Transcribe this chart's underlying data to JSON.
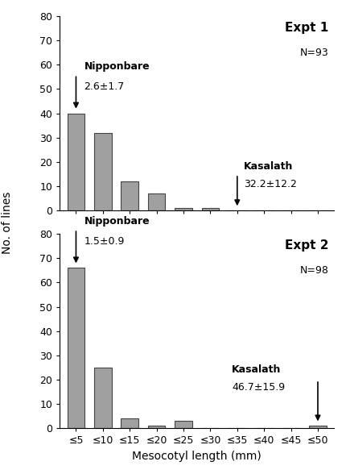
{
  "expt1": {
    "title": "Expt 1",
    "N": "N=93",
    "values": [
      40,
      32,
      12,
      7,
      1,
      1,
      0,
      0,
      0,
      0
    ],
    "nipponbare_label": "Nipponbare",
    "nipponbare_value": "2.6±1.7",
    "kasalath_label": "Kasalath",
    "kasalath_value": "32.2±12.2",
    "kasalath_bar_idx": 6,
    "ylim": [
      0,
      80
    ],
    "yticks": [
      0,
      10,
      20,
      30,
      40,
      50,
      60,
      70,
      80
    ]
  },
  "expt2": {
    "title": "Expt 2",
    "N": "N=98",
    "values": [
      66,
      25,
      4,
      1,
      3,
      0,
      0,
      0,
      0,
      1
    ],
    "nipponbare_label": "Nipponbare",
    "nipponbare_value": "1.5±0.9",
    "kasalath_label": "Kasalath",
    "kasalath_value": "46.7±15.9",
    "kasalath_bar_idx": 9,
    "ylim": [
      0,
      80
    ],
    "yticks": [
      0,
      10,
      20,
      30,
      40,
      50,
      60,
      70,
      80
    ]
  },
  "categories": [
    "≤5",
    "≤10",
    "≤15",
    "≤20",
    "≤25",
    "≤30",
    "≤35",
    "≤40",
    "≤45",
    "≤50"
  ],
  "bar_color": "#a0a0a0",
  "bar_edge_color": "#444444",
  "xlabel": "Mesocotyl length (mm)",
  "ylabel": "No. of lines",
  "bg_color": "#ffffff"
}
